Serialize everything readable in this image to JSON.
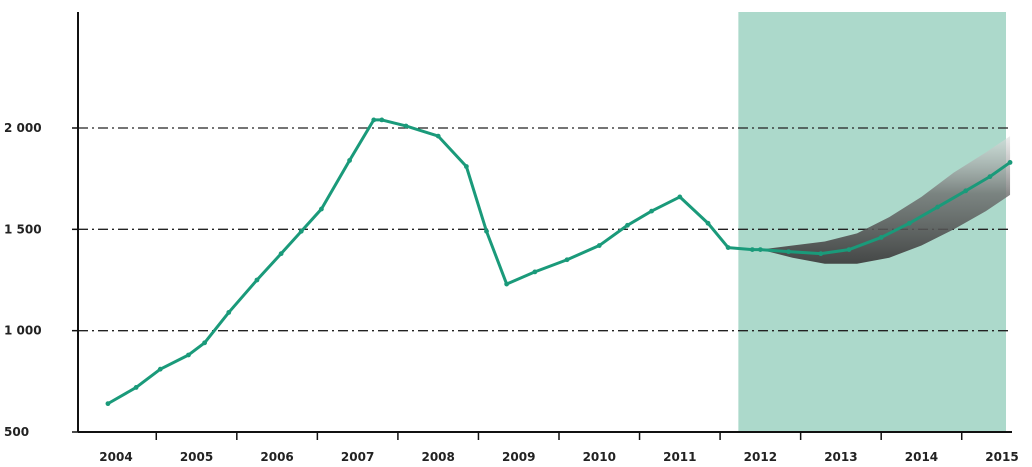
{
  "chart_data": {
    "type": "line",
    "title": "",
    "xlabel": "",
    "ylabel": "",
    "x_ticks": [
      "2004",
      "2005",
      "2006",
      "2007",
      "2008",
      "2009",
      "2010",
      "2011",
      "2012",
      "2013",
      "2014",
      "2015"
    ],
    "y_ticks": [
      {
        "value": 500,
        "label": "500"
      },
      {
        "value": 1000,
        "label": "1 000"
      },
      {
        "value": 1500,
        "label": "1 500"
      },
      {
        "value": 2000,
        "label": "2 000"
      }
    ],
    "xlim": [
      2004,
      2015
    ],
    "ylim": [
      500,
      2560
    ],
    "gridlines_at": [
      1000,
      1500,
      2000
    ],
    "forecast_region": {
      "from": 2012,
      "to": 2015
    },
    "series": [
      {
        "color": "#1a9a7a",
        "x": [
          2003.9,
          2004.25,
          2004.55,
          2004.9,
          2005.1,
          2005.4,
          2005.75,
          2006.05,
          2006.3,
          2006.55,
          2006.9,
          2007.2,
          2007.3,
          2007.6,
          2008.0,
          2008.35,
          2008.6,
          2008.85,
          2009.2,
          2009.6,
          2010.0,
          2010.35,
          2010.65,
          2011.0,
          2011.35,
          2011.6,
          2011.9,
          2012.0,
          2012.35,
          2012.75,
          2013.1,
          2013.5,
          2013.85,
          2014.2,
          2014.55,
          2014.85,
          2015.1
        ],
        "y": [
          640,
          720,
          810,
          880,
          940,
          1090,
          1250,
          1380,
          1490,
          1600,
          1840,
          2040,
          2040,
          2010,
          1960,
          1810,
          1490,
          1230,
          1290,
          1350,
          1420,
          1520,
          1590,
          1660,
          1530,
          1410,
          1400,
          1400,
          1390,
          1380,
          1400,
          1460,
          1530,
          1610,
          1690,
          1760,
          1830
        ]
      }
    ],
    "forecast_band": {
      "x": [
        2012.0,
        2012.4,
        2012.8,
        2013.2,
        2013.6,
        2014.0,
        2014.4,
        2014.8,
        2015.1
      ],
      "lower": [
        1400,
        1360,
        1330,
        1330,
        1360,
        1420,
        1500,
        1590,
        1670
      ],
      "upper": [
        1400,
        1420,
        1440,
        1480,
        1560,
        1660,
        1780,
        1880,
        1960
      ]
    },
    "colors": {
      "line": "#1a9a7a",
      "forecast_bg": "#acd9cb",
      "fan_dark": "#4a4a4a",
      "fan_light": "#d8d8d8",
      "grid": "#222222",
      "axis": "#111111"
    },
    "grid": true,
    "legend": "none"
  }
}
